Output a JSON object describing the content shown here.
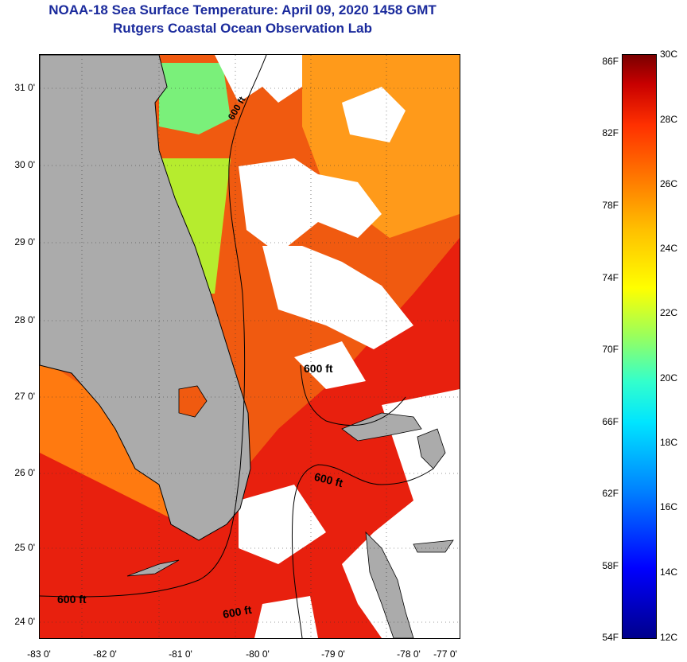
{
  "title": {
    "line1": "NOAA-18 Sea Surface Temperature:  April 09, 2020 1458 GMT",
    "line2": "Rutgers Coastal Ocean Observation Lab"
  },
  "lat_labels": [
    "31 0'",
    "30 0'",
    "29 0'",
    "28 0'",
    "27 0'",
    "26 0'",
    "25 0'",
    "24 0'"
  ],
  "lon_labels": [
    "-83 0'",
    "-82 0'",
    "-81 0'",
    "-80 0'",
    "-79 0'",
    "-78 0'",
    "-77 0'"
  ],
  "contour_labels": [
    "600 ft",
    "600 ft",
    "600 ft",
    "600 ft",
    "600 ft"
  ],
  "colorbar": {
    "fahrenheit": [
      "86F",
      "82F",
      "78F",
      "74F",
      "70F",
      "66F",
      "62F",
      "58F",
      "54F"
    ],
    "celsius": [
      "30C",
      "28C",
      "26C",
      "24C",
      "22C",
      "20C",
      "18C",
      "16C",
      "14C",
      "12C"
    ]
  },
  "colors": {
    "title": "#1a2a9c",
    "land": "#ababab",
    "warm": "#e8200e",
    "mid": "#f05a10",
    "cool": "#ff9a1a",
    "cold": "#b6ec2e"
  }
}
